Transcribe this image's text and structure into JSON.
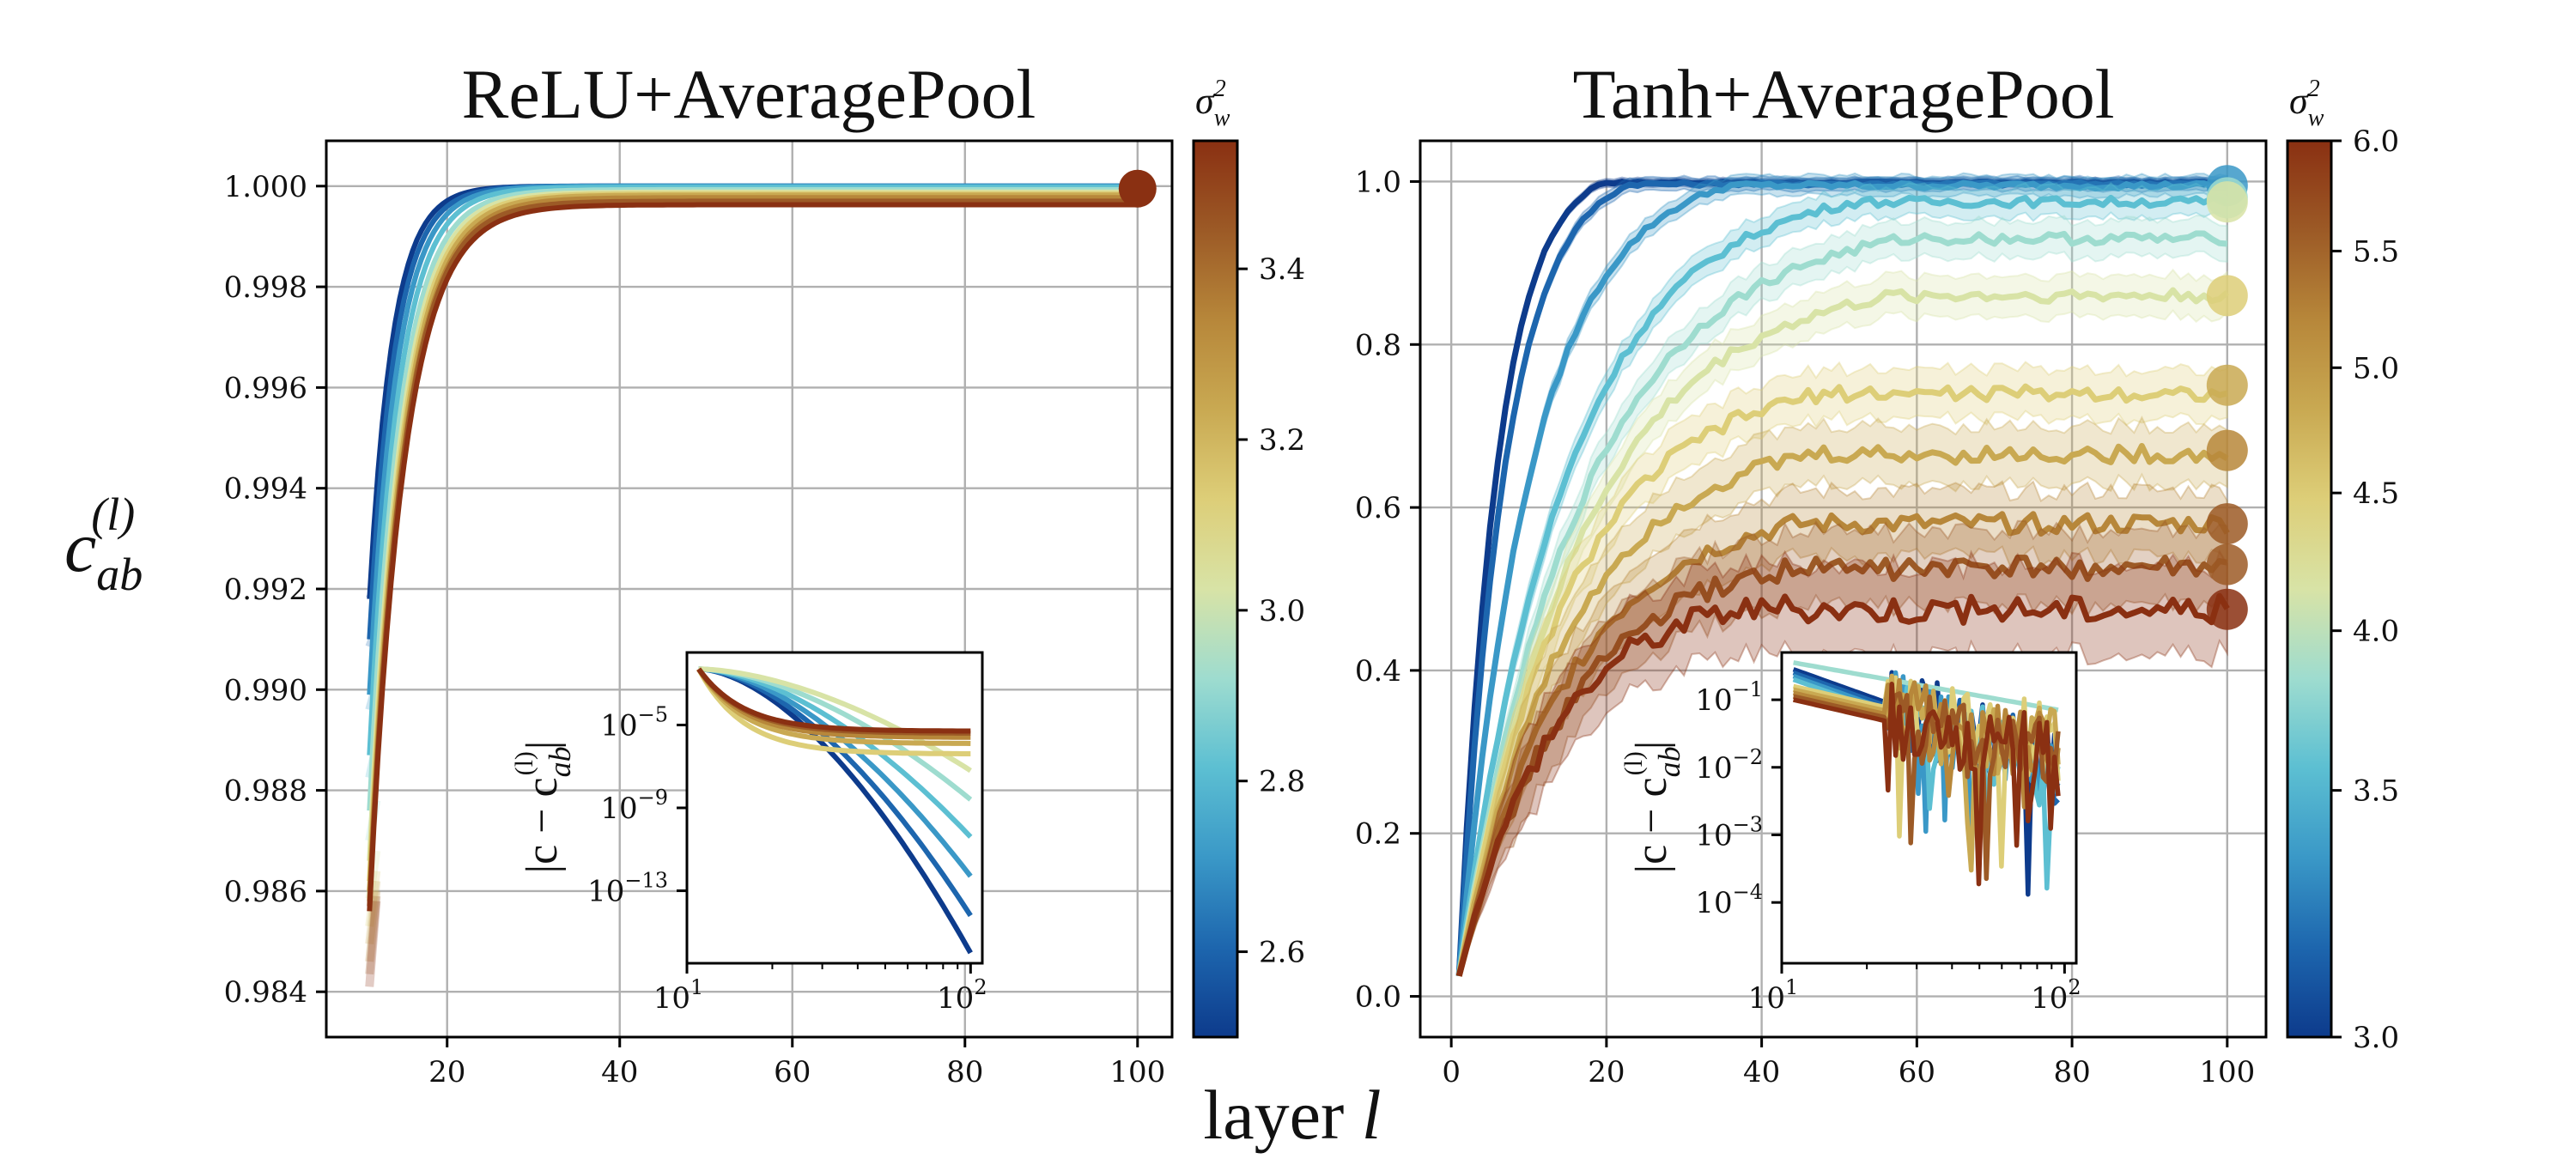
{
  "figure": {
    "shared_ylabel_base": "c",
    "shared_ylabel_sub": "ab",
    "shared_ylabel_sup": "(l)",
    "shared_xlabel_text": "layer ",
    "shared_xlabel_var": "l"
  },
  "colors": {
    "palette": [
      "#0d3b8c",
      "#1d66ae",
      "#3a98c7",
      "#5cbfd2",
      "#9edccf",
      "#d8e3a6",
      "#ddce78",
      "#c9a952",
      "#b7873a",
      "#9c5a26",
      "#8a3012"
    ]
  },
  "chart_data": [
    {
      "id": "relu",
      "type": "line",
      "title": "ReLU+AveragePool",
      "xlabel": "layer l",
      "ylabel": "c_ab^(l)",
      "xlim": [
        6,
        104
      ],
      "ylim": [
        0.9831,
        1.0009
      ],
      "xticks": [
        20,
        40,
        60,
        80,
        100
      ],
      "yticks": [
        0.984,
        0.986,
        0.988,
        0.99,
        0.992,
        0.994,
        0.996,
        0.998,
        1.0
      ],
      "ytick_labels": [
        "0.984",
        "0.986",
        "0.988",
        "0.990",
        "0.992",
        "0.994",
        "0.996",
        "0.998",
        "1.000"
      ],
      "grid": true,
      "x_start": 11,
      "series": [
        {
          "sigma_w2": 2.5,
          "start": 0.9918,
          "plateau": 1.0,
          "tau": 2.7
        },
        {
          "sigma_w2": 2.6,
          "start": 0.991,
          "plateau": 1.0,
          "tau": 2.9
        },
        {
          "sigma_w2": 2.7,
          "start": 0.9899,
          "plateau": 1.0,
          "tau": 3.1
        },
        {
          "sigma_w2": 2.8,
          "start": 0.9887,
          "plateau": 0.99998,
          "tau": 3.3
        },
        {
          "sigma_w2": 2.9,
          "start": 0.9876,
          "plateau": 0.99993,
          "tau": 3.5
        },
        {
          "sigma_w2": 3.0,
          "start": 0.9866,
          "plateau": 0.99988,
          "tau": 3.6
        },
        {
          "sigma_w2": 3.1,
          "start": 0.9862,
          "plateau": 0.99985,
          "tau": 3.7
        },
        {
          "sigma_w2": 3.2,
          "start": 0.986,
          "plateau": 0.99982,
          "tau": 3.8
        },
        {
          "sigma_w2": 3.3,
          "start": 0.9858,
          "plateau": 0.99977,
          "tau": 3.9
        },
        {
          "sigma_w2": 3.4,
          "start": 0.9857,
          "plateau": 0.9997,
          "tau": 3.9
        },
        {
          "sigma_w2": 3.5,
          "start": 0.9856,
          "plateau": 0.99963,
          "tau": 4.0
        }
      ],
      "end_marker": {
        "x": 100,
        "y": 0.99995
      },
      "colorbar": {
        "label": "σ",
        "label_sup": "2",
        "label_sub": "w",
        "min": 2.5,
        "max": 3.55,
        "ticks": [
          2.6,
          2.8,
          3.0,
          3.2,
          3.4
        ],
        "tick_labels": [
          "2.6",
          "2.8",
          "3.0",
          "3.2",
          "3.4"
        ],
        "scale": "linear"
      },
      "inset": {
        "type": "line",
        "xscale": "log",
        "yscale": "log",
        "ylabel": "|c − c_ab^(l)|",
        "ylabel_left": "|c − c",
        "ylabel_right": "|",
        "xlim": [
          10,
          110
        ],
        "ylim_exp": [
          -16.5,
          -1.5
        ],
        "xticks": [
          10,
          100
        ],
        "xtick_bases": [
          "10",
          "10"
        ],
        "xtick_exps": [
          "1",
          "2"
        ],
        "yticks_exp": [
          -5,
          -9,
          -13
        ],
        "ytick_bases": [
          "10",
          "10",
          "10"
        ],
        "ytick_exps": [
          "−5",
          "−9",
          "−13"
        ],
        "series_final_exp": [
          -16.0,
          -14.2,
          -12.3,
          -10.4,
          -8.6,
          -7.2,
          -6.4,
          -5.9,
          -5.6,
          -5.4,
          -5.3
        ]
      }
    },
    {
      "id": "tanh",
      "type": "line",
      "title": "Tanh+AveragePool",
      "xlabel": "layer l",
      "ylabel": "c_ab^(l)",
      "xlim": [
        -4,
        105
      ],
      "ylim": [
        -0.05,
        1.05
      ],
      "xticks": [
        0,
        20,
        40,
        60,
        80,
        100
      ],
      "yticks": [
        0.0,
        0.2,
        0.4,
        0.6,
        0.8,
        1.0
      ],
      "ytick_labels": [
        "0.0",
        "0.2",
        "0.4",
        "0.6",
        "0.8",
        "1.0"
      ],
      "grid": true,
      "x_start": 1,
      "series": [
        {
          "sigma_w2": 3.0,
          "final": 0.999,
          "tau": 5.0,
          "band": 0.005
        },
        {
          "sigma_w2": 3.2,
          "final": 0.997,
          "tau": 6.0,
          "band": 0.008
        },
        {
          "sigma_w2": 3.4,
          "final": 0.995,
          "tau": 9.5,
          "band": 0.012
        },
        {
          "sigma_w2": 3.6,
          "final": 0.975,
          "tau": 14.0,
          "band": 0.018
        },
        {
          "sigma_w2": 3.8,
          "final": 0.93,
          "tau": 16.0,
          "band": 0.022
        },
        {
          "sigma_w2": 4.2,
          "final": 0.86,
          "tau": 16.0,
          "band": 0.025
        },
        {
          "sigma_w2": 4.6,
          "final": 0.74,
          "tau": 14.0,
          "band": 0.03
        },
        {
          "sigma_w2": 5.0,
          "final": 0.665,
          "tau": 14.0,
          "band": 0.035
        },
        {
          "sigma_w2": 5.4,
          "final": 0.58,
          "tau": 14.0,
          "band": 0.04
        },
        {
          "sigma_w2": 5.7,
          "final": 0.525,
          "tau": 14.0,
          "band": 0.045
        },
        {
          "sigma_w2": 6.0,
          "final": 0.475,
          "tau": 12.0,
          "band": 0.055
        }
      ],
      "end_markers_y": [
        0.995,
        0.98,
        0.975,
        0.86,
        0.75,
        0.67,
        0.58,
        0.53,
        0.475
      ],
      "colorbar": {
        "label": "σ",
        "label_sup": "2",
        "label_sub": "w",
        "min": 3.0,
        "max": 6.0,
        "ticks": [
          3.5,
          4.0,
          4.5,
          5.0,
          5.5,
          6.0,
          3.0
        ],
        "tick_labels": [
          "3.5",
          "4.0",
          "4.5",
          "5.0",
          "5.5",
          "6.0",
          "3.0"
        ],
        "scale": "nonlinear"
      },
      "inset": {
        "type": "line",
        "xscale": "log",
        "yscale": "log",
        "ylabel": "|c − c_ab^(l)|",
        "ylabel_left": "|c − c",
        "ylabel_right": "|",
        "xlim": [
          10,
          110
        ],
        "ylim_exp": [
          -4.9,
          -0.3
        ],
        "xticks": [
          10,
          100
        ],
        "xtick_bases": [
          "10",
          "10"
        ],
        "xtick_exps": [
          "1",
          "2"
        ],
        "yticks_exp": [
          -1,
          -2,
          -3,
          -4
        ],
        "ytick_bases": [
          "10",
          "10",
          "10",
          "10"
        ],
        "ytick_exps": [
          "−1",
          "−2",
          "−3",
          "−4"
        ]
      }
    }
  ]
}
